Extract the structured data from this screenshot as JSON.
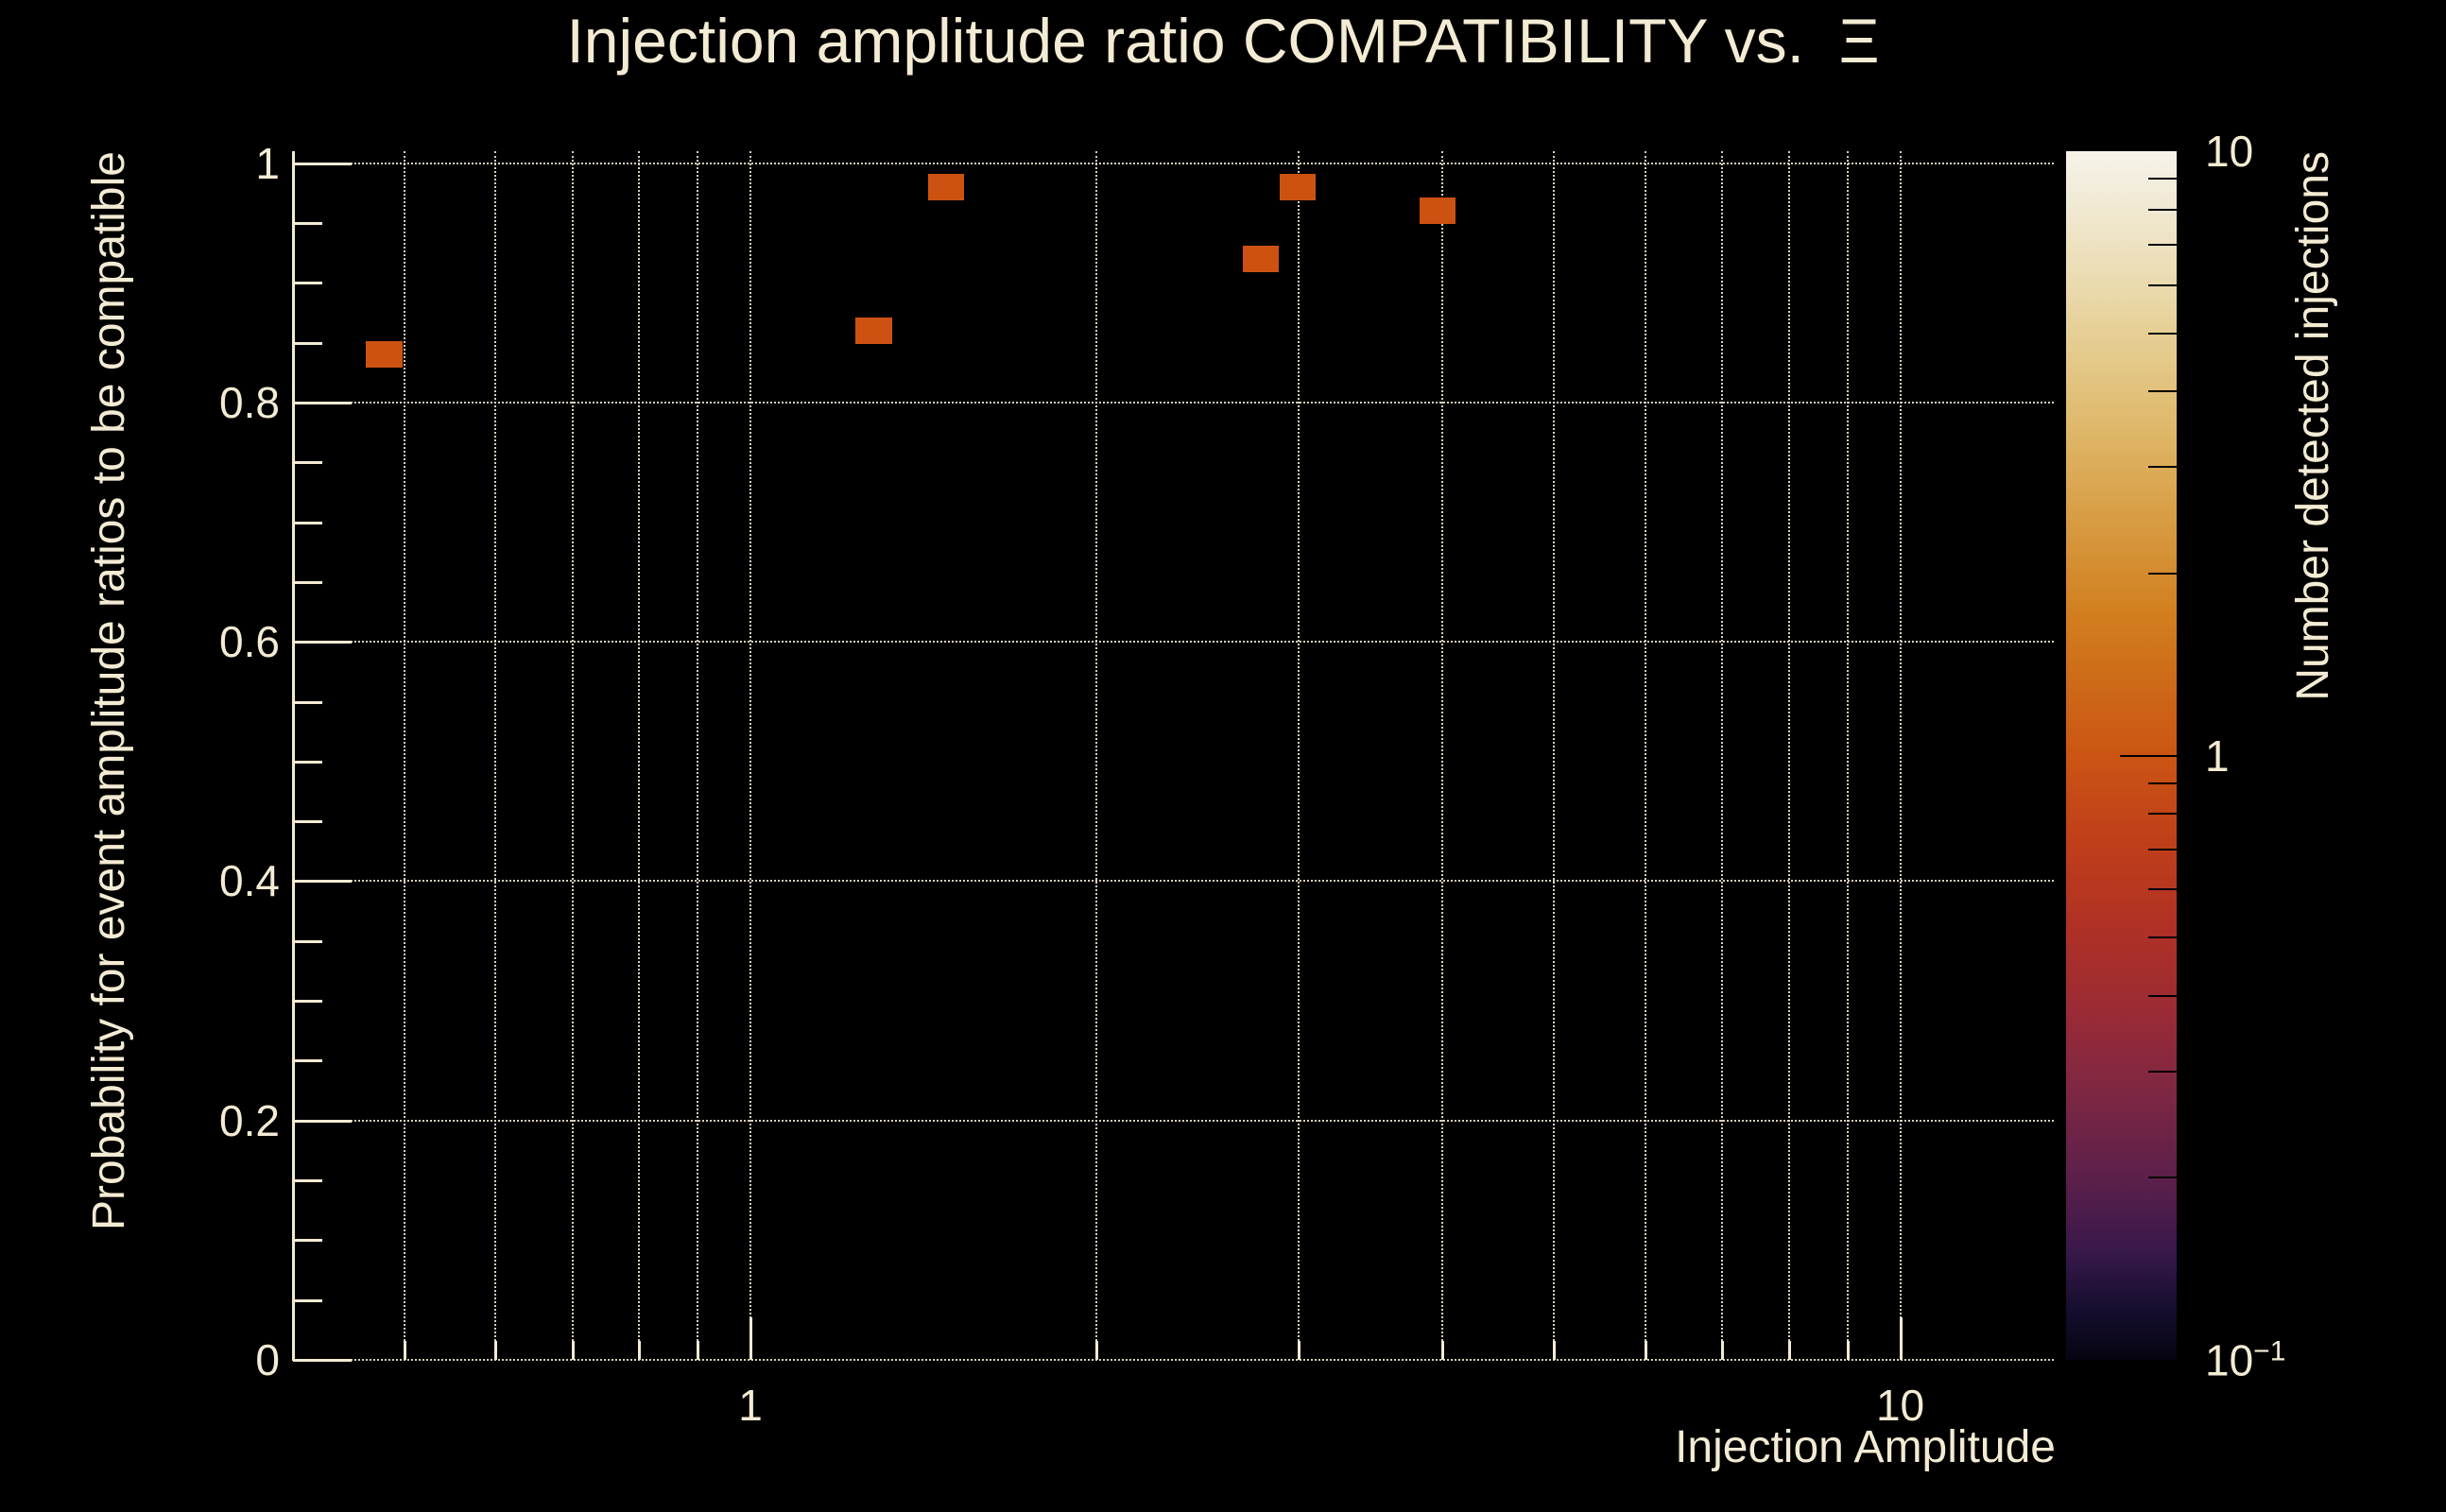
{
  "page": {
    "background": "#000000",
    "text_color": "#f3ebd3",
    "grid_color": "rgba(240,231,208,0.9)"
  },
  "chart_data": {
    "type": "heatmap",
    "title": "Injection amplitude ratio COMPATIBILITY vs.  Ξ",
    "xlabel": "Injection Amplitude",
    "ylabel": "Probability for event amplitude ratios to be compatible",
    "zlabel": "Number detected injections",
    "x_axis": {
      "scale": "log",
      "min": 0.4,
      "max": 13.6,
      "gridlines": [
        0.5,
        0.6,
        0.7,
        0.8,
        0.9,
        1,
        2,
        3,
        4,
        5,
        6,
        7,
        8,
        9,
        10
      ],
      "major_ticks": [
        1,
        10
      ],
      "minor_ticks": [
        0.5,
        0.6,
        0.7,
        0.8,
        0.9,
        2,
        3,
        4,
        5,
        6,
        7,
        8,
        9
      ],
      "tick_labels": [
        {
          "value": 1,
          "label": "1"
        },
        {
          "value": 10,
          "label": "10"
        }
      ]
    },
    "y_axis": {
      "scale": "linear",
      "min": 0,
      "max": 1.01,
      "gridlines": [
        1,
        0.8,
        0.6,
        0.4,
        0.2,
        0
      ],
      "major_ticks": [
        0,
        0.2,
        0.4,
        0.6,
        0.8,
        1
      ],
      "minor_ticks": [
        0.05,
        0.1,
        0.15,
        0.25,
        0.3,
        0.35,
        0.45,
        0.5,
        0.55,
        0.65,
        0.7,
        0.75,
        0.85,
        0.9,
        0.95
      ],
      "tick_labels": [
        {
          "value": 1,
          "label": "1"
        },
        {
          "value": 0.8,
          "label": "0.8"
        },
        {
          "value": 0.6,
          "label": "0.6"
        },
        {
          "value": 0.4,
          "label": "0.4"
        },
        {
          "value": 0.2,
          "label": "0.2"
        },
        {
          "value": 0,
          "label": "0"
        }
      ]
    },
    "z_axis": {
      "scale": "log",
      "min": 0.1,
      "max": 10,
      "major_ticks": [
        1
      ],
      "minor_ticks": [
        0.2,
        0.3,
        0.4,
        0.5,
        0.6,
        0.7,
        0.8,
        0.9,
        2,
        3,
        4,
        5,
        6,
        7,
        8,
        9
      ],
      "tick_labels": [
        {
          "value": 10,
          "base": "10",
          "exp": ""
        },
        {
          "value": 1,
          "base": "1",
          "exp": ""
        },
        {
          "value": 0.1,
          "base": "10",
          "exp": "−1"
        }
      ]
    },
    "cells": {
      "color": "#cd5211",
      "x_halfwidth_ratio": 1.037,
      "y_halfheight": 0.011,
      "points": [
        {
          "x": 0.48,
          "y": 0.84,
          "count": 1
        },
        {
          "x": 1.28,
          "y": 0.86,
          "count": 1
        },
        {
          "x": 1.48,
          "y": 0.98,
          "count": 1
        },
        {
          "x": 2.78,
          "y": 0.92,
          "count": 1
        },
        {
          "x": 2.99,
          "y": 0.98,
          "count": 1
        },
        {
          "x": 3.96,
          "y": 0.96,
          "count": 1
        }
      ]
    },
    "palette": {
      "stops": [
        [
          0.0,
          "#f6f3ea"
        ],
        [
          0.04,
          "#f1ead6"
        ],
        [
          0.1,
          "#ebddb4"
        ],
        [
          0.17,
          "#e4ca8b"
        ],
        [
          0.24,
          "#deb464"
        ],
        [
          0.31,
          "#d79a41"
        ],
        [
          0.38,
          "#d2801f"
        ],
        [
          0.44,
          "#cd6a18"
        ],
        [
          0.5,
          "#cb5514"
        ],
        [
          0.57,
          "#c03f1a"
        ],
        [
          0.64,
          "#b03124"
        ],
        [
          0.71,
          "#9b2b35"
        ],
        [
          0.78,
          "#7d2743"
        ],
        [
          0.85,
          "#5c204b"
        ],
        [
          0.91,
          "#38184a"
        ],
        [
          0.96,
          "#150e2e"
        ],
        [
          1.0,
          "#060410"
        ]
      ]
    }
  }
}
